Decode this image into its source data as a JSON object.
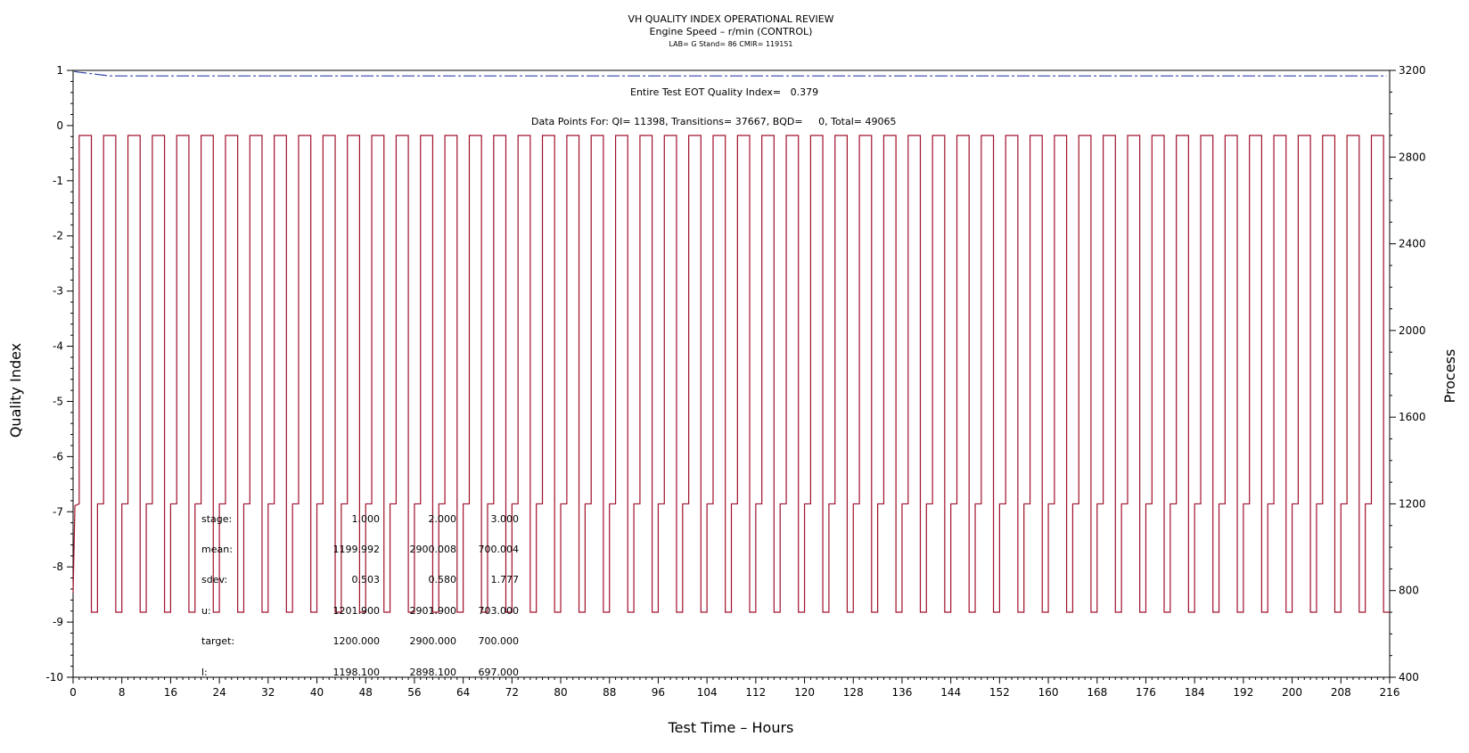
{
  "chart_data": {
    "type": "line",
    "title": "VH QUALITY INDEX OPERATIONAL REVIEW",
    "subtitle": "Engine Speed – r/min (CONTROL)",
    "subsubtitle": "LAB= G Stand= 86 CMIR= 119151",
    "xlabel": "Test Time – Hours",
    "ylabel_left": "Quality Index",
    "ylabel_right": "Process",
    "xlim": [
      0,
      216
    ],
    "ylim_left": [
      -10,
      1
    ],
    "ylim_right": [
      400,
      3200
    ],
    "x_ticks": [
      0,
      8,
      16,
      24,
      32,
      40,
      48,
      56,
      64,
      72,
      80,
      88,
      96,
      104,
      112,
      120,
      128,
      136,
      144,
      152,
      160,
      168,
      176,
      184,
      192,
      200,
      208,
      216
    ],
    "y_left_ticks": [
      1,
      0,
      -1,
      -2,
      -3,
      -4,
      -5,
      -6,
      -7,
      -8,
      -9,
      -10
    ],
    "y_right_ticks": [
      400,
      800,
      1200,
      1600,
      2000,
      2400,
      2800,
      3200
    ],
    "annotation_qi": "Entire Test EOT Quality Index=   0.379",
    "annotation_points": "Data Points For: QI= 11398, Transitions= 37667, BQD=     0, Total= 49065",
    "stats": {
      "labels": [
        "stage:",
        "mean:",
        "sdev:",
        "u:",
        "target:",
        "l:"
      ],
      "stage1": [
        "1.000",
        "1199.992",
        "0.503",
        "1201.900",
        "1200.000",
        "1198.100"
      ],
      "stage2": [
        "2.000",
        "2900.008",
        "0.580",
        "2901.900",
        "2900.000",
        "2898.100"
      ],
      "stage3": [
        "3.000",
        "700.004",
        "1.777",
        "703.000",
        "700.000",
        "697.000"
      ]
    },
    "series": [
      {
        "axis": "right",
        "color": "#a0102a",
        "stages": [
          1200,
          2900,
          700
        ],
        "first_transition_hour": 1,
        "cycle_period_hours": 4,
        "stage_durations_hours": [
          1,
          2,
          1
        ]
      },
      {
        "axis": "left",
        "color": "#3344aa",
        "dash": "dash-dot",
        "qi_level": 0.9,
        "qi_start": 0.98
      }
    ],
    "grid": false
  }
}
